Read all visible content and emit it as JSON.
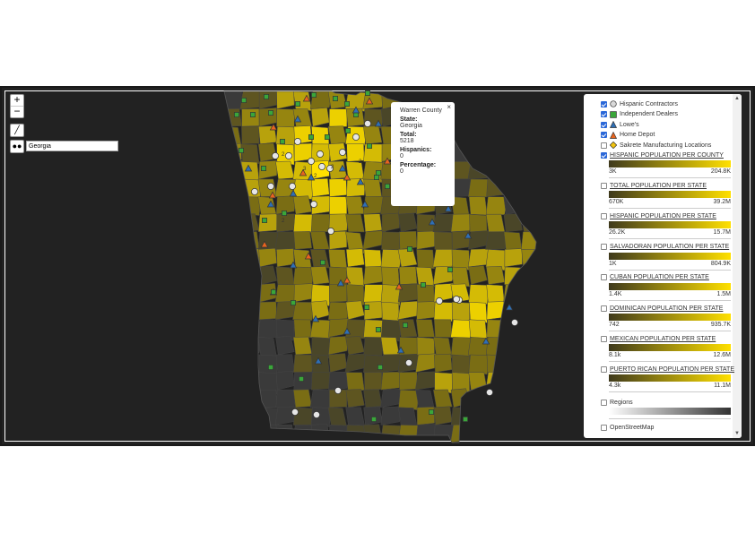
{
  "zoom": {
    "in_label": "+",
    "out_label": "−"
  },
  "tools": {
    "measure_icon": "ruler-icon",
    "search_icon": "binoculars-icon"
  },
  "search": {
    "value": "Georgia"
  },
  "popup": {
    "close_label": "×",
    "county": "Warren County",
    "state_label": "State:",
    "state_value": "Georgia",
    "total_label": "Total:",
    "total_value": "5218",
    "hispanics_label": "Hispanics:",
    "hispanics_value": "0",
    "percentage_label": "Percentage:",
    "percentage_value": "0"
  },
  "legend": {
    "points": [
      {
        "label": "Hispanic Contractors",
        "checked": true,
        "symbol": "circle",
        "color": "#d9d9d9"
      },
      {
        "label": "Independent Dealers",
        "checked": true,
        "symbol": "square",
        "color": "#3aa63a"
      },
      {
        "label": "Lowe's",
        "checked": true,
        "symbol": "triangle",
        "color": "#2f6fb5"
      },
      {
        "label": "Home Depot",
        "checked": true,
        "symbol": "triangle",
        "color": "#e8641e"
      },
      {
        "label": "Sakrete Manufacturing Locations",
        "checked": false,
        "symbol": "diamond",
        "color": "#f2c40f"
      }
    ],
    "layers": [
      {
        "label": "HISPANIC POPULATION PER COUNTY",
        "checked": true,
        "min": "3K",
        "max": "204.8K"
      },
      {
        "label": "TOTAL POPULATION PER STATE",
        "checked": false,
        "min": "670K",
        "max": "39.2M"
      },
      {
        "label": "HISPANIC POPULATION PER STATE",
        "checked": false,
        "min": "26.2K",
        "max": "15.7M"
      },
      {
        "label": "SALVADORAN POPULATION PER STATE",
        "checked": false,
        "min": "1K",
        "max": "804.9K"
      },
      {
        "label": "CUBAN POPULATION PER STATE",
        "checked": false,
        "min": "1.4K",
        "max": "1.5M"
      },
      {
        "label": "DOMINICAN POPULATION PER STATE",
        "checked": false,
        "min": "742",
        "max": "935.7K"
      },
      {
        "label": "MEXICAN POPULATION PER STATE",
        "checked": false,
        "min": "8.1k",
        "max": "12.6M"
      },
      {
        "label": "PUERTO RICAN POPULATION PER STATE",
        "checked": false,
        "min": "4.3k",
        "max": "11.1M"
      }
    ],
    "regions": {
      "label": "Regions",
      "checked": false
    },
    "osm": {
      "label": "OpenStreetMap",
      "checked": false
    }
  },
  "colors": {
    "ramp_low": "#3f3a1c",
    "ramp_high": "#ffe000",
    "regions_low": "#ffffff",
    "regions_high": "#333333"
  },
  "map": {
    "cluster_counts": [
      "2",
      "2",
      "3",
      "2",
      "2",
      "2"
    ]
  }
}
